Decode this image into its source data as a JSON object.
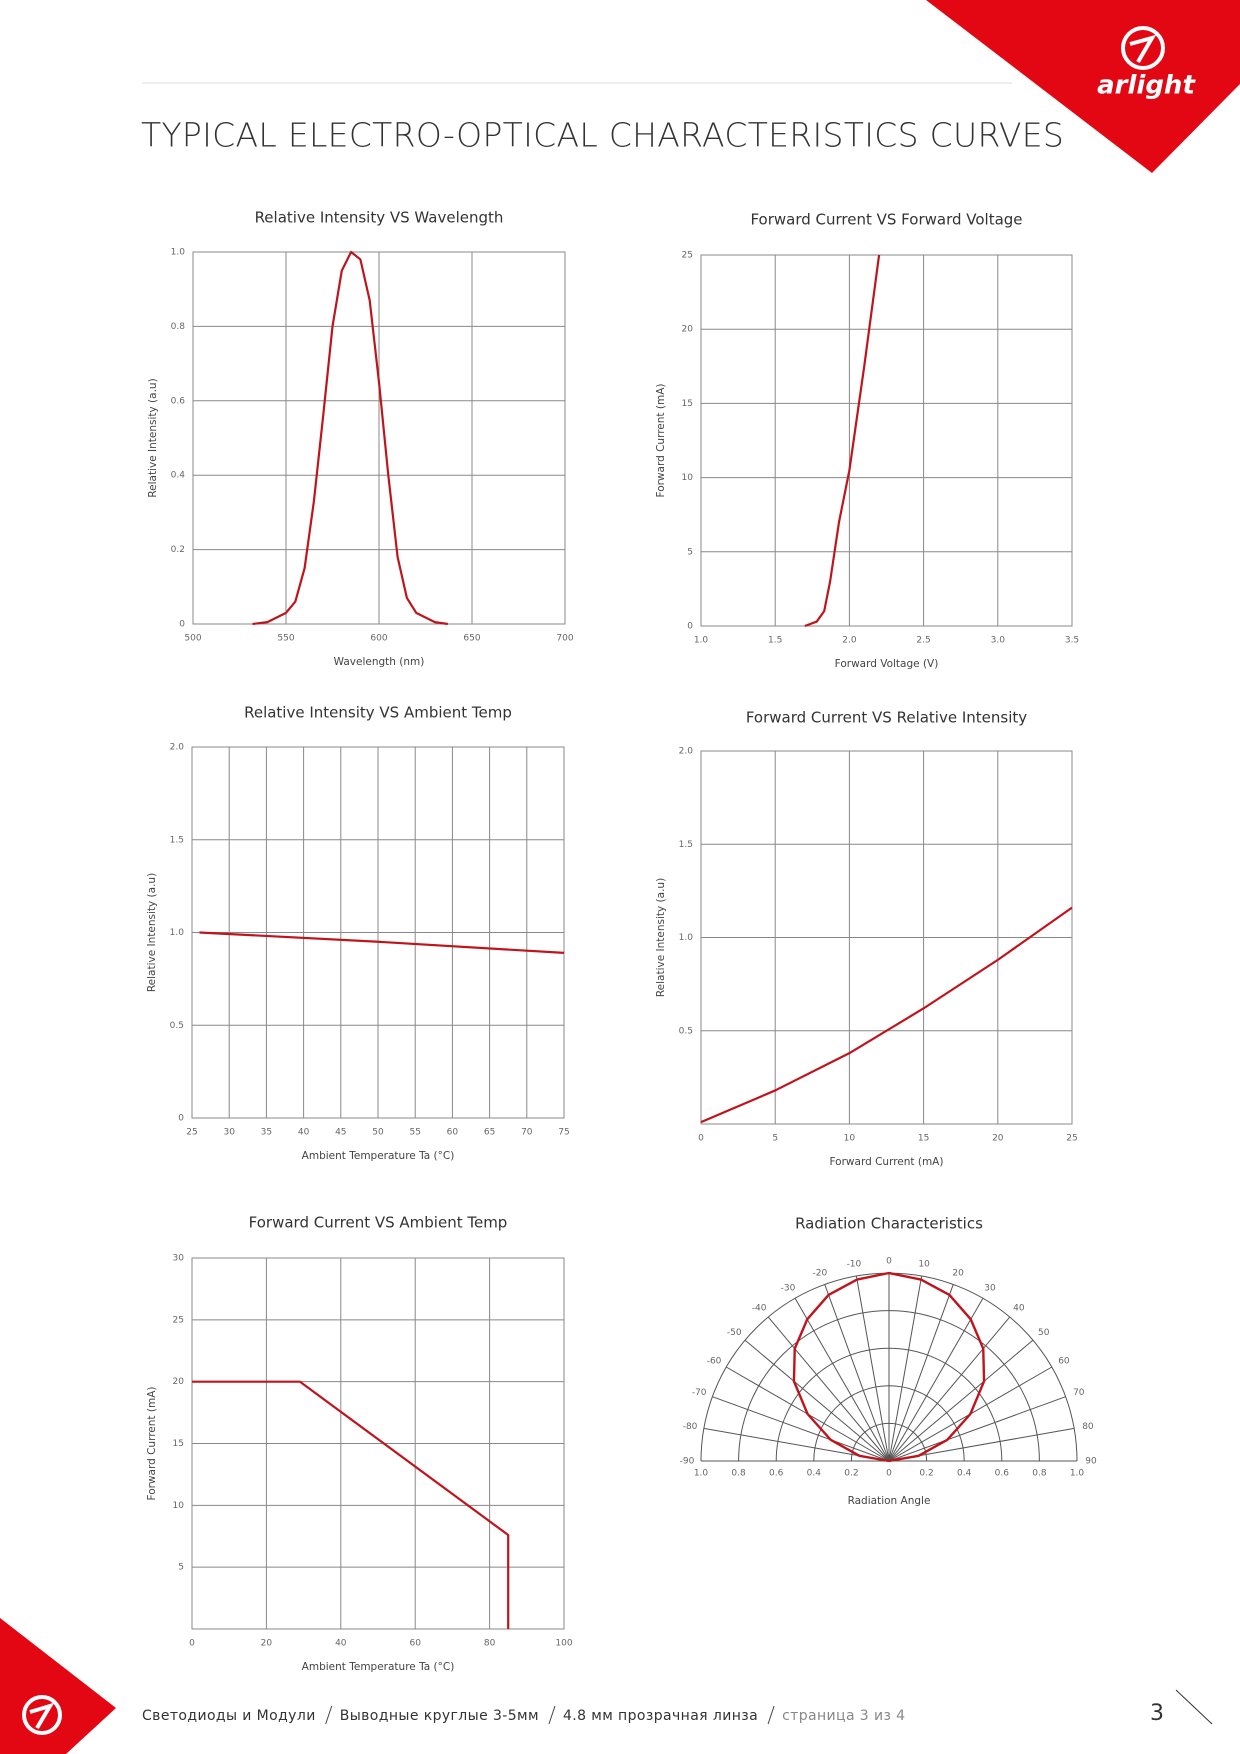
{
  "header": {
    "title": "TYPICAL ELECTRO-OPTICAL CHARACTERISTICS CURVES",
    "logo": "arlight"
  },
  "chart_data": [
    {
      "type": "line",
      "title": "Relative Intensity VS Wavelength",
      "xlabel": "Wavelength (nm)",
      "ylabel": "Relative Intensity (a.u)",
      "color": "#c0141c",
      "grid": true,
      "xlim": [
        500,
        700
      ],
      "xticks": [
        500,
        550,
        600,
        650,
        700
      ],
      "ylim": [
        0,
        1
      ],
      "yticks": [
        0,
        0.2,
        0.4,
        0.6,
        0.8,
        {
          "value": 1,
          "label": "1.0"
        }
      ],
      "x": [
        532,
        540,
        550,
        555,
        560,
        565,
        570,
        575,
        580,
        585,
        590,
        595,
        600,
        605,
        610,
        615,
        620,
        630,
        637
      ],
      "values": [
        0,
        0.005,
        0.03,
        0.06,
        0.15,
        0.33,
        0.56,
        0.8,
        0.95,
        1.0,
        0.98,
        0.87,
        0.65,
        0.4,
        0.18,
        0.07,
        0.03,
        0.005,
        0
      ]
    },
    {
      "type": "line",
      "title": "Forward Current VS Forward Voltage",
      "xlabel": "Forward Voltage (V)",
      "ylabel": "Forward Current (mA)",
      "color": "#c0141c",
      "grid": true,
      "xlim": [
        1,
        3.5
      ],
      "xticks": [
        {
          "value": 1,
          "label": "1.0"
        },
        1.5,
        {
          "value": 2,
          "label": "2.0"
        },
        2.5,
        {
          "value": 3,
          "label": "3.0"
        },
        3.5
      ],
      "ylim": [
        0,
        25
      ],
      "yticks": [
        0,
        5,
        10,
        15,
        20,
        25
      ],
      "x": [
        1.7,
        1.78,
        1.83,
        1.87,
        1.93,
        2.0,
        2.1,
        2.2
      ],
      "values": [
        0,
        0.3,
        1,
        3,
        7,
        10.5,
        17.5,
        25
      ]
    },
    {
      "type": "line",
      "title": "Relative Intensity VS Ambient Temp",
      "xlabel": "Ambient Temperature Ta (°C)",
      "ylabel": "Relative Intensity (a.u)",
      "color": "#c0141c",
      "grid": true,
      "xlim": [
        25,
        75
      ],
      "xticks": [
        25,
        30,
        35,
        40,
        45,
        50,
        55,
        60,
        65,
        70,
        75
      ],
      "ylim": [
        0,
        2
      ],
      "yticks": [
        0,
        0.5,
        {
          "value": 1,
          "label": "1.0"
        },
        1.5,
        {
          "value": 2,
          "label": "2.0"
        }
      ],
      "x": [
        26,
        50,
        75
      ],
      "values": [
        1.0,
        0.95,
        0.89
      ]
    },
    {
      "type": "line",
      "title": "Forward Current VS Relative Intensity",
      "xlabel": "Forward Current (mA)",
      "ylabel": "Relative Intensity (a.u)",
      "color": "#c0141c",
      "grid": true,
      "xlim": [
        0,
        25
      ],
      "xticks": [
        0,
        5,
        10,
        15,
        20,
        25
      ],
      "ylim": [
        0,
        2
      ],
      "yticks": [
        0.5,
        {
          "value": 1,
          "label": "1.0"
        },
        1.5,
        {
          "value": 2,
          "label": "2.0"
        }
      ],
      "x": [
        0,
        5,
        10,
        15,
        20,
        25
      ],
      "values": [
        0.01,
        0.18,
        0.38,
        0.62,
        0.88,
        1.16
      ]
    },
    {
      "type": "line",
      "title": "Forward Current VS Ambient Temp",
      "xlabel": "Ambient Temperature Ta (°C)",
      "ylabel": "Forward Current (mA)",
      "color": "#c0141c",
      "grid": true,
      "xlim": [
        0,
        100
      ],
      "xticks": [
        0,
        20,
        40,
        60,
        80,
        100
      ],
      "ylim": [
        0,
        30
      ],
      "yticks": [
        5,
        10,
        15,
        20,
        25,
        30
      ],
      "x": [
        0,
        29,
        85,
        85
      ],
      "values": [
        20,
        20,
        7.6,
        0
      ]
    },
    {
      "type": "polar",
      "title": "Radiation Characteristics",
      "xlabel": "Radiation Angle",
      "color": "#c0141c",
      "grid": true,
      "rlim": [
        0,
        1
      ],
      "rticks": [
        0,
        0.2,
        0.4,
        0.6,
        0.8,
        {
          "value": 1,
          "label": "1.0"
        }
      ],
      "angle_ticks": [
        -90,
        -80,
        -70,
        -60,
        -50,
        -40,
        -30,
        -20,
        -10,
        0,
        10,
        20,
        30,
        40,
        50,
        60,
        70,
        80,
        90
      ],
      "angles": [
        -90,
        -80,
        -70,
        -60,
        -50,
        -40,
        -30,
        -20,
        -10,
        0,
        10,
        20,
        30,
        40,
        50,
        60,
        70,
        80,
        90
      ],
      "values": [
        0,
        0.16,
        0.33,
        0.5,
        0.66,
        0.78,
        0.87,
        0.94,
        0.98,
        1.0,
        0.98,
        0.94,
        0.87,
        0.78,
        0.66,
        0.5,
        0.33,
        0.16,
        0
      ]
    }
  ],
  "footer": {
    "parts": [
      "Светодиоды и Модули",
      "Выводные круглые 3-5мм",
      "4.8 мм прозрачная линза",
      "страница 3 из 4"
    ],
    "page": "3"
  }
}
